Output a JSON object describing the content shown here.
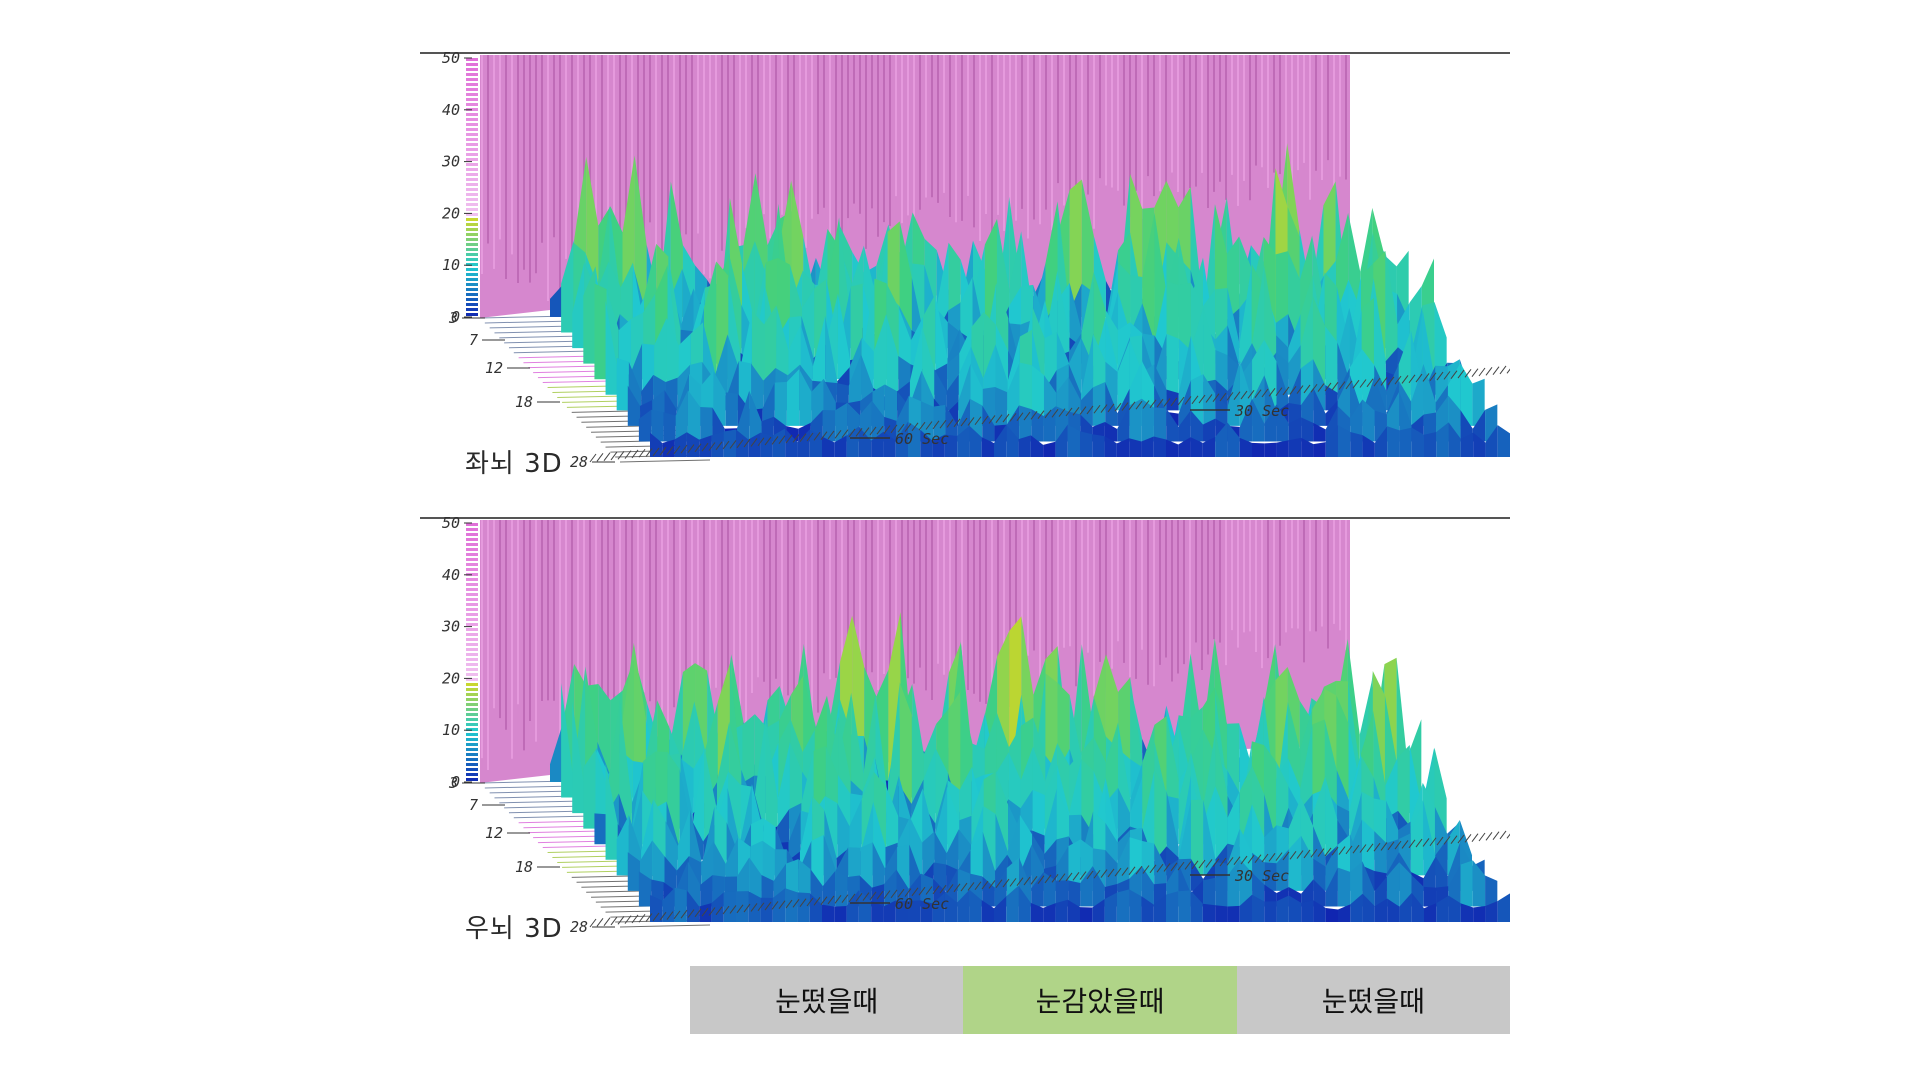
{
  "chart_data": [
    {
      "type": "surface3d",
      "label": "좌뇌 3D",
      "zlim": [
        0,
        50
      ],
      "z_ticks": [
        "0",
        "10",
        "20",
        "30",
        "40",
        "50"
      ],
      "freq_ticks": [
        "3",
        "7",
        "12",
        "18",
        "28"
      ],
      "time_ticks": [
        "60 Sec",
        "30 Sec"
      ],
      "colors": {
        "low": "#1020b0",
        "mid": "#20c8d0",
        "high": "#d8d820",
        "wall": "#e070d8"
      }
    },
    {
      "type": "surface3d",
      "label": "우뇌 3D",
      "zlim": [
        0,
        50
      ],
      "z_ticks": [
        "0",
        "10",
        "20",
        "30",
        "40",
        "50"
      ],
      "freq_ticks": [
        "3",
        "7",
        "12",
        "18",
        "28"
      ],
      "time_ticks": [
        "60 Sec",
        "30 Sec"
      ],
      "colors": {
        "low": "#1020b0",
        "mid": "#20c8d0",
        "high": "#d8d820",
        "wall": "#e070d8"
      }
    }
  ],
  "states": [
    {
      "label": "눈떴을때",
      "color": "#c8c8c8"
    },
    {
      "label": "눈감았을때",
      "color": "#b0d488"
    },
    {
      "label": "눈떴을때",
      "color": "#c8c8c8"
    }
  ]
}
